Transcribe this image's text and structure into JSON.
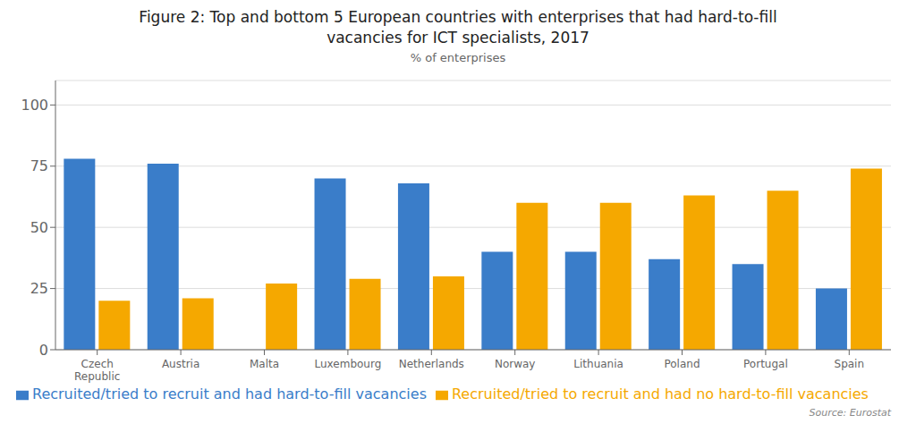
{
  "chart_data": {
    "type": "bar",
    "title": "Figure 2: Top and bottom 5 European countries with enterprises that had hard-to-fill\nvacancies for ICT specialists, 2017",
    "subtitle": "% of enterprises",
    "annotations": [
      "Source: Eurostat"
    ],
    "categories": [
      "Czech\nRepublic",
      "Austria",
      "Malta",
      "Luxembourg",
      "Netherlands",
      "Norway",
      "Lithuania",
      "Poland",
      "Portugal",
      "Spain"
    ],
    "series": [
      {
        "name": "Recruited/tried to recruit and had hard-to-fill vacancies",
        "color": "#3A7DC9",
        "values": [
          78,
          76,
          0,
          70,
          68,
          40,
          40,
          37,
          35,
          25
        ]
      },
      {
        "name": "Recruited/tried to recruit and had no hard-to-fill vacancies",
        "color": "#F5A800",
        "values": [
          20,
          21,
          27,
          29,
          30,
          60,
          60,
          63,
          65,
          74
        ]
      }
    ],
    "ylim": [
      0,
      110
    ],
    "yticks": [
      0,
      25,
      50,
      75,
      100
    ],
    "grid": true,
    "legend": "bottom"
  }
}
